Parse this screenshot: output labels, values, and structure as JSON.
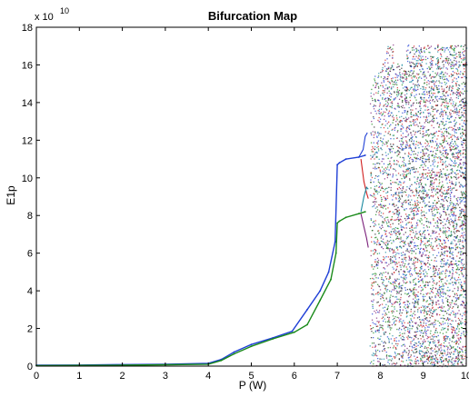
{
  "chart_data": {
    "type": "scatter",
    "title": "Bifurcation Map",
    "xlabel": "P (W)",
    "ylabel": "E1p",
    "y_multiplier": "x 10",
    "y_exponent": "10",
    "xlim": [
      0,
      10
    ],
    "ylim": [
      0,
      18
    ],
    "x_ticks": [
      "0",
      "1",
      "2",
      "3",
      "4",
      "5",
      "6",
      "7",
      "8",
      "9",
      "10"
    ],
    "y_ticks": [
      "0",
      "2",
      "4",
      "6",
      "8",
      "10",
      "12",
      "14",
      "16",
      "18"
    ],
    "grid": false,
    "series": [
      {
        "color": "#1f3fd6",
        "x": [
          0,
          1,
          2,
          3,
          4,
          4.3,
          4.6,
          5,
          5.5,
          5.95,
          6.3,
          6.6,
          6.8,
          6.95,
          7.0,
          7.05,
          7.2,
          7.5,
          7.65
        ],
        "y": [
          0.05,
          0.06,
          0.08,
          0.1,
          0.15,
          0.35,
          0.75,
          1.15,
          1.5,
          1.85,
          3.0,
          4.0,
          5.0,
          6.6,
          10.7,
          10.8,
          11.0,
          11.1,
          11.2
        ]
      },
      {
        "color": "#1a8a1a",
        "x": [
          0,
          1,
          2,
          3,
          4,
          4.3,
          4.6,
          5,
          5.5,
          6.0,
          6.3,
          6.6,
          6.85,
          6.97,
          7.0,
          7.05,
          7.2,
          7.5,
          7.65
        ],
        "y": [
          0.03,
          0.04,
          0.05,
          0.07,
          0.1,
          0.3,
          0.65,
          1.05,
          1.45,
          1.8,
          2.2,
          3.5,
          4.6,
          6.0,
          7.6,
          7.7,
          7.9,
          8.1,
          8.2
        ]
      }
    ],
    "chaotic_region": {
      "x_start": 7.75,
      "x_end": 10,
      "y_low": 0,
      "y_high": 17.1,
      "colors": [
        "#1f3fd6",
        "#1a8a1a",
        "#d11f1f",
        "#7a1f7a",
        "#1a8aa0",
        "#222222"
      ]
    }
  }
}
